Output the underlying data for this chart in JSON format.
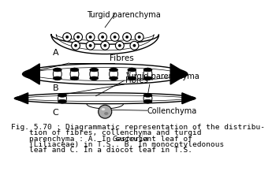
{
  "bg_color": "#ffffff",
  "label_A": "A",
  "label_B": "B",
  "label_C": "C",
  "label_turgid_A": "Turgid parenchyma",
  "label_fibres_B": "Fibres",
  "label_turgid_C": "Turgid parenchyma",
  "label_fibres_C": "Fibres",
  "label_collenchyma": "Collenchyma",
  "caption_line1": "Fig. 5.70 : Diagrammatic representation of the distribu-",
  "caption_line2": "    tion of fibres, collenchyma and turgid",
  "caption_line3": "    parenchyma : A. In succulent leaf of ",
  "caption_gasteria": "Gasteria",
  "caption_line4": "    (Liliaceae) in T.S.. B. In monocotyledonous",
  "caption_line5": "    leaf and C. In a diocot leaf in T.S."
}
